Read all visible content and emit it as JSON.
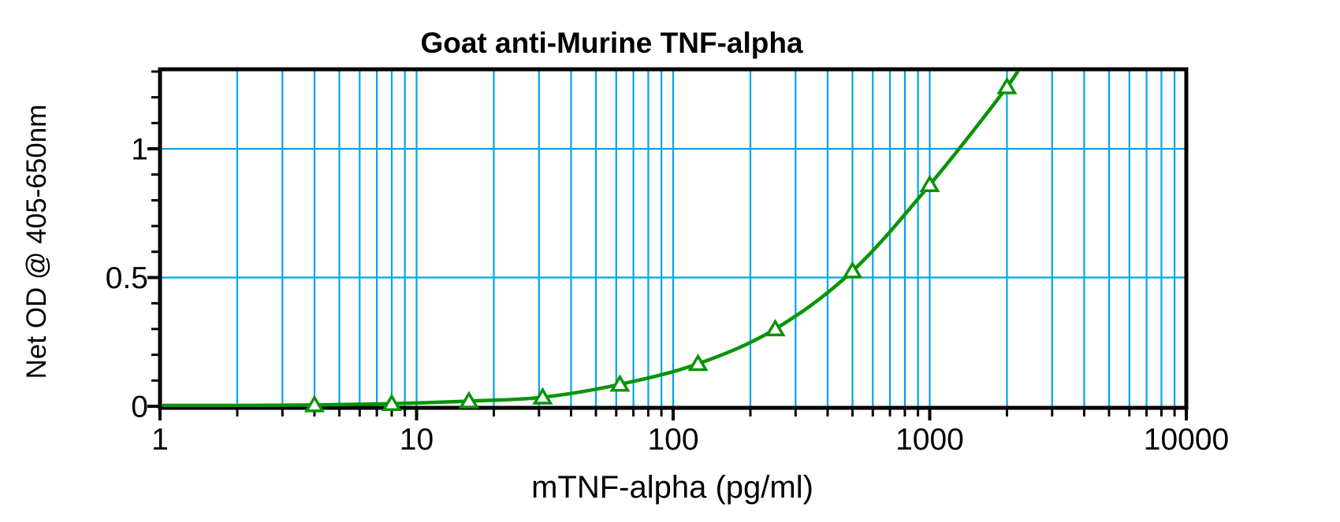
{
  "title": "Goat anti-Murine TNF-alpha",
  "chart_data": {
    "type": "line",
    "title": "Goat anti-Murine TNF-alpha",
    "xlabel": "mTNF-alpha (pg/ml)",
    "ylabel": "Net OD @ 405-650nm",
    "x_scale": "log10",
    "x_range": [
      1,
      10000
    ],
    "y_range": [
      0,
      1.33
    ],
    "grid": "on",
    "legend": "none",
    "x_ticks_major": [
      1,
      10,
      100,
      1000,
      10000
    ],
    "x_tick_labels": [
      "1",
      "10",
      "100",
      "1000",
      "10000"
    ],
    "x_minor_ticks": "2-9 per decade",
    "y_ticks_major": [
      0,
      0.5,
      1
    ],
    "y_tick_labels": [
      "0",
      "0.5",
      "1"
    ],
    "y_minor_tick_step": 0.1,
    "series": [
      {
        "name": "standard-curve",
        "marker": "open-triangle",
        "x": [
          4,
          8,
          16,
          31,
          62,
          125,
          250,
          500,
          1000,
          2000
        ],
        "y": [
          0.005,
          0.01,
          0.02,
          0.035,
          0.085,
          0.165,
          0.3,
          0.525,
          0.86,
          1.24
        ]
      }
    ],
    "curve_extension": {
      "left": [
        1,
        0.003
      ],
      "right": [
        2300,
        1.34
      ]
    },
    "colors": {
      "curve": "#089408",
      "grid": "#00A5E8",
      "axis": "#000000",
      "marker_fill": "#ffffff",
      "background": "#ffffff"
    }
  }
}
